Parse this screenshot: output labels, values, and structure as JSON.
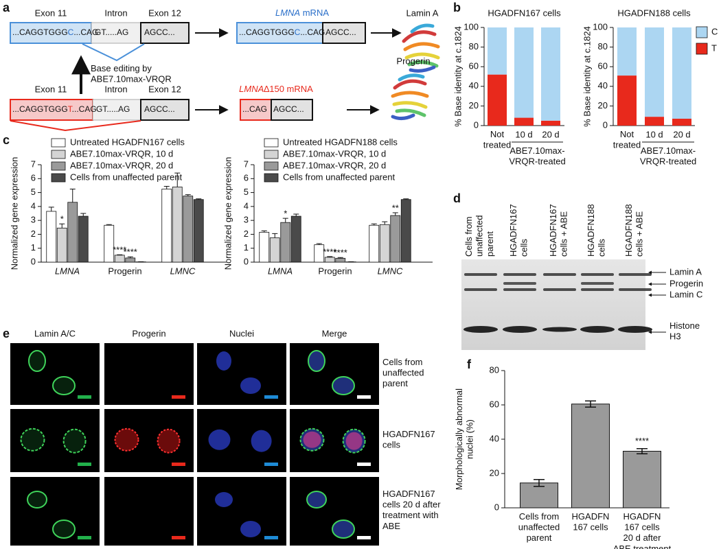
{
  "panel_labels": {
    "a": "a",
    "b": "b",
    "c": "c",
    "d": "d",
    "e": "e",
    "f": "f"
  },
  "diagram": {
    "top": {
      "exon11": "Exon 11",
      "intron": "Intron",
      "exon12": "Exon 12",
      "exon11_seq": [
        "...CAGGTGGG",
        "C",
        "...CAG"
      ],
      "intron_seq": "GT.....AG",
      "exon12_seq": "AGCC...",
      "mrna_label": [
        "LMNA",
        " mRNA"
      ],
      "mrna_seq": [
        "...CAGGTGGG",
        "C",
        "...CAG"
      ],
      "mrna_exon12_seq": "AGCC...",
      "protein": "Lamin A"
    },
    "edit_label": "Base editing by\nABE7.10max-VRQR",
    "bottom": {
      "exon11": "Exon 11",
      "intron": "Intron",
      "exon12": "Exon 12",
      "exon11_seq": [
        "...CAGGTGGG",
        "T",
        "...CAG"
      ],
      "intron_seq": "GT.....AG",
      "exon12_seq": "AGCC...",
      "mrna_label": [
        "LMNA",
        "∆150 mRNA"
      ],
      "mrna_seq": "...CAG",
      "mrna_exon12_seq": "AGCC...",
      "protein": "Progerin"
    }
  },
  "chart_data": [
    {
      "type": "stacked_bar",
      "title": "HGADFN167 cells",
      "y_label": "% Base identity at c.1824",
      "categories": [
        "Not\ntreated",
        "10 d",
        "20 d"
      ],
      "group_label": "ABE7.10max-\nVRQR-treated",
      "series": [
        {
          "name": "T",
          "color": "#e8291c",
          "values": [
            52,
            8,
            5
          ]
        },
        {
          "name": "C",
          "color": "#acd6f2",
          "values": [
            48,
            92,
            95
          ]
        }
      ],
      "ylim": [
        0,
        100
      ],
      "yticks": [
        0,
        20,
        40,
        60,
        80,
        100
      ]
    },
    {
      "type": "stacked_bar",
      "title": "HGADFN188 cells",
      "y_label": "% Base identity at c.1824",
      "categories": [
        "Not\ntreated",
        "10 d",
        "20 d"
      ],
      "group_label": "ABE7.10max-\nVRQR-treated",
      "series": [
        {
          "name": "T",
          "color": "#e8291c",
          "values": [
            51,
            9,
            7
          ]
        },
        {
          "name": "C",
          "color": "#acd6f2",
          "values": [
            49,
            91,
            93
          ]
        }
      ],
      "ylim": [
        0,
        100
      ],
      "yticks": [
        0,
        20,
        40,
        60,
        80,
        100
      ],
      "legend": "right"
    },
    {
      "type": "grouped_bar",
      "y_label": "Normalized gene expression",
      "categories": [
        "LMNA",
        "Progerin",
        "LMNC"
      ],
      "category_style": [
        "italic",
        "normal",
        "italic"
      ],
      "significance_color": "#3d6db5",
      "legend": "top-left",
      "series": [
        {
          "name": "Untreated HGADFN167 cells",
          "color": "#ffffff",
          "values": [
            3.65,
            2.65,
            5.25
          ],
          "errors": [
            0.3,
            0.05,
            0.2
          ],
          "significance": [
            null,
            null,
            null
          ]
        },
        {
          "name": "ABE7.10max-VRQR, 10 d",
          "color": "#d4d4d4",
          "values": [
            2.45,
            0.5,
            5.4
          ],
          "errors": [
            0.3,
            0.03,
            1.0
          ],
          "significance": [
            "*",
            "****",
            null
          ]
        },
        {
          "name": "ABE7.10max-VRQR, 20 d",
          "color": "#9a9a9a",
          "values": [
            4.3,
            0.3,
            4.75
          ],
          "errors": [
            0.95,
            0.08,
            0.1
          ],
          "significance": [
            null,
            "****",
            null
          ]
        },
        {
          "name": "Cells from unaffected parent",
          "color": "#4a4a4a",
          "values": [
            3.3,
            0.02,
            4.5
          ],
          "errors": [
            0.2,
            0.01,
            0.05
          ],
          "significance": [
            null,
            null,
            null
          ]
        }
      ],
      "ylim": [
        0,
        7
      ],
      "yticks": [
        0,
        1,
        2,
        3,
        4,
        5,
        6,
        7
      ]
    },
    {
      "type": "grouped_bar",
      "y_label": "Normalized gene expression",
      "categories": [
        "LMNA",
        "Progerin",
        "LMNC"
      ],
      "category_style": [
        "italic",
        "normal",
        "italic"
      ],
      "significance_color": "#3d6db5",
      "legend": "top-left",
      "series": [
        {
          "name": "Untreated HGADFN188 cells",
          "color": "#ffffff",
          "values": [
            2.15,
            1.25,
            2.65
          ],
          "errors": [
            0.1,
            0.08,
            0.1
          ],
          "significance": [
            null,
            null,
            null
          ]
        },
        {
          "name": "ABE7.10max-VRQR, 10 d",
          "color": "#d4d4d4",
          "values": [
            1.75,
            0.35,
            2.7
          ],
          "errors": [
            0.3,
            0.05,
            0.2
          ],
          "significance": [
            null,
            "****",
            null
          ]
        },
        {
          "name": "ABE7.10max-VRQR, 20 d",
          "color": "#9a9a9a",
          "values": [
            2.85,
            0.28,
            3.35
          ],
          "errors": [
            0.3,
            0.05,
            0.2
          ],
          "significance": [
            "*",
            "****",
            "**"
          ]
        },
        {
          "name": "Cells from unaffected parent",
          "color": "#4a4a4a",
          "values": [
            3.3,
            0.02,
            4.5
          ],
          "errors": [
            0.15,
            0.01,
            0.05
          ],
          "significance": [
            null,
            null,
            null
          ]
        }
      ],
      "ylim": [
        0,
        7
      ],
      "yticks": [
        0,
        1,
        2,
        3,
        4,
        5,
        6,
        7
      ]
    },
    {
      "type": "bar",
      "y_label": "Morphologically abnormal\nnuclei (%)",
      "categories": [
        "Cells from\nunaffected\nparent",
        "HGADFN\n167 cells",
        "HGADFN\n167 cells\n20 d after\nABE treatment"
      ],
      "values": [
        14.5,
        60.5,
        33
      ],
      "errors": [
        2,
        1.8,
        1.5
      ],
      "significance": [
        null,
        null,
        "****"
      ],
      "significance_color": "#3d6db5",
      "color": "#9a9a9a",
      "ylim": [
        0,
        80
      ],
      "yticks": [
        0,
        20,
        40,
        60,
        80
      ]
    }
  ],
  "blot": {
    "lanes": [
      "Cells from\nunaffected\nparent",
      "HGADFN167\ncells",
      "HGADFN167\ncells + ABE",
      "HGADFN188\ncells",
      "HGADFN188\ncells + ABE"
    ],
    "bands": [
      "Lamin A",
      "Progerin",
      "Lamin C",
      "Histone\nH3"
    ]
  },
  "micrographs": {
    "columns": [
      "Lamin A/C",
      "Progerin",
      "Nuclei",
      "Merge"
    ],
    "rows": [
      "Cells from\nunaffected\nparent",
      "HGADFN167\ncells",
      "HGADFN167\ncells 20 d after\ntreatment with\nABE"
    ]
  }
}
